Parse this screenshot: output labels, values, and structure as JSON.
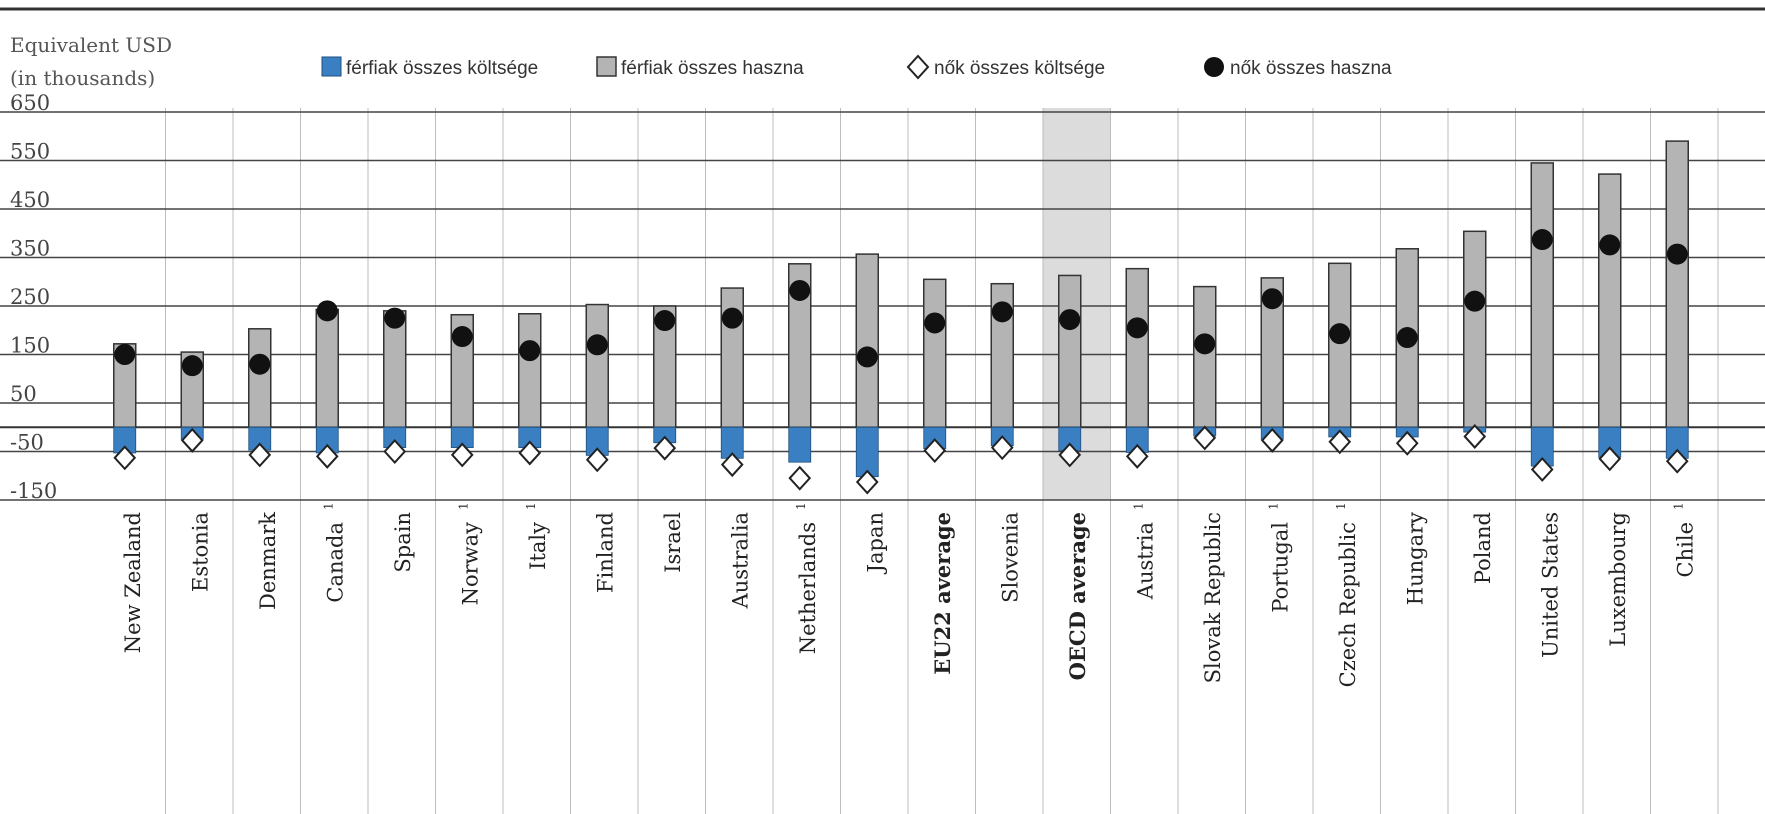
{
  "chart_data": {
    "type": "bar",
    "ylabel_line1": "Equivalent USD",
    "ylabel_line2": "(in thousands)",
    "ylim": [
      -150,
      650
    ],
    "yticks": [
      650,
      550,
      450,
      350,
      250,
      150,
      50,
      -50,
      -150
    ],
    "grid": true,
    "legend_position": "top",
    "colors": {
      "men_cost": "#3a7fc1",
      "men_benefit": "#b4b4b4",
      "women_cost_fill": "#ffffff",
      "women_benefit": "#111111",
      "grid": "#444444",
      "highlight_column": "#dcdcdc"
    },
    "legend": [
      {
        "key": "men_cost",
        "label": "férfiak összes költsége",
        "marker": "blue-square"
      },
      {
        "key": "men_benefit",
        "label": "férfiak összes haszna",
        "marker": "gray-square"
      },
      {
        "key": "women_cost",
        "label": "nők összes költsége",
        "marker": "white-diamond"
      },
      {
        "key": "women_benefit",
        "label": "nők összes haszna",
        "marker": "black-dot"
      }
    ],
    "categories": [
      {
        "label": "New Zealand",
        "sup": "",
        "bold": false
      },
      {
        "label": "Estonia",
        "sup": "",
        "bold": false
      },
      {
        "label": "Denmark",
        "sup": "",
        "bold": false
      },
      {
        "label": "Canada",
        "sup": "1",
        "bold": false
      },
      {
        "label": "Spain",
        "sup": "",
        "bold": false
      },
      {
        "label": "Norway",
        "sup": "1",
        "bold": false
      },
      {
        "label": "Italy",
        "sup": "1",
        "bold": false
      },
      {
        "label": "Finland",
        "sup": "",
        "bold": false
      },
      {
        "label": "Israel",
        "sup": "",
        "bold": false
      },
      {
        "label": "Australia",
        "sup": "",
        "bold": false
      },
      {
        "label": "Netherlands",
        "sup": "1",
        "bold": false
      },
      {
        "label": "Japan",
        "sup": "",
        "bold": false
      },
      {
        "label": "EU22 average",
        "sup": "",
        "bold": true
      },
      {
        "label": "Slovenia",
        "sup": "",
        "bold": false
      },
      {
        "label": "OECD average",
        "sup": "",
        "bold": true,
        "highlight": true
      },
      {
        "label": "Austria",
        "sup": "1",
        "bold": false
      },
      {
        "label": "Slovak Republic",
        "sup": "",
        "bold": false
      },
      {
        "label": "Portugal",
        "sup": "1",
        "bold": false
      },
      {
        "label": "Czech Republic",
        "sup": "1",
        "bold": false
      },
      {
        "label": "Hungary",
        "sup": "",
        "bold": false
      },
      {
        "label": "Poland",
        "sup": "",
        "bold": false
      },
      {
        "label": "United States",
        "sup": "",
        "bold": false
      },
      {
        "label": "Luxembourg",
        "sup": "",
        "bold": false
      },
      {
        "label": "Chile",
        "sup": "1",
        "bold": false
      }
    ],
    "series": [
      {
        "name": "férfiak összes költsége",
        "values": [
          -53,
          -25,
          -47,
          -53,
          -42,
          -42,
          -42,
          -58,
          -32,
          -64,
          -72,
          -102,
          -44,
          -38,
          -48,
          -52,
          -18,
          -25,
          -20,
          -20,
          -10,
          -80,
          -62,
          -64
        ]
      },
      {
        "name": "férfiak összes haszna",
        "values": [
          172,
          155,
          203,
          243,
          240,
          232,
          234,
          253,
          250,
          287,
          337,
          357,
          305,
          296,
          313,
          327,
          290,
          308,
          338,
          368,
          404,
          545,
          522,
          590
        ]
      },
      {
        "name": "nők összes költsége",
        "values": [
          -63,
          -27,
          -57,
          -60,
          -50,
          -57,
          -53,
          -67,
          -43,
          -77,
          -105,
          -113,
          -48,
          -42,
          -57,
          -60,
          -22,
          -27,
          -30,
          -33,
          -19,
          -87,
          -65,
          -70
        ]
      },
      {
        "name": "nők összes haszna",
        "values": [
          150,
          127,
          130,
          240,
          225,
          187,
          158,
          170,
          220,
          225,
          282,
          145,
          215,
          238,
          222,
          205,
          172,
          265,
          193,
          185,
          260,
          387,
          376,
          357
        ]
      }
    ]
  }
}
